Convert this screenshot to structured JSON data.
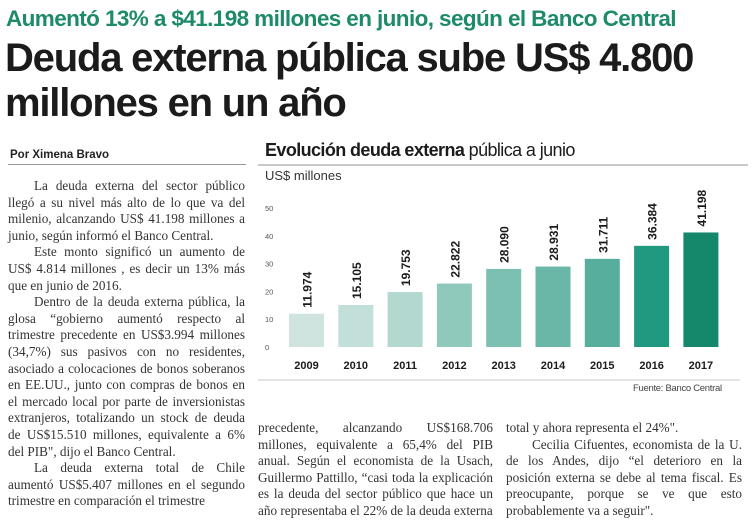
{
  "article": {
    "kicker": "Aumentó 13% a $41.198 millones en junio, según el Banco Central",
    "headline": "Deuda externa pública sube US$ 4.800 millones en un año",
    "byline": "Por Ximena Bravo",
    "column1": [
      "La deuda externa del sector público llegó a su nivel más alto de lo que va del milenio, alcanzando US$ 41.198 millones a junio, según informó el Banco Central.",
      "Este monto significó un aumento de US$ 4.814 millones , es decir un 13% más que en junio de 2016.",
      "Dentro de la deuda externa pública, la glosa “gobierno aumentó respecto al trimestre precedente en US$3.994 millones (34,7%) sus pasivos con no residentes, asociado a colocaciones de bonos soberanos en EE.UU., junto con compras de bonos en el mercado local por parte de inversionistas extranjeros, totalizando un stock de deuda de US$15.510 millones, equivalente a 6% del PIB\", dijo el Banco Central.",
      "La deuda externa total de Chile aumentó US$5.407 millones en el segundo trimestre en comparación el trimestre"
    ],
    "column2": [
      "precedente, alcanzando US$168.706 millones, equivalente a 65,4% del PIB anual. Según el economista de la Usach, Guillermo Pattillo, “casi toda la explicación es la deuda del sector público que hace un año representaba el 22% de la deuda externa"
    ],
    "column3": [
      "total y ahora representa el 24%\".",
      "Cecilia Cifuentes, economista de la U. de los Andes, dijo “el deterioro en la posición externa se debe al tema fiscal. Es preocupante, porque se ve que esto probablemente va a seguir\"."
    ]
  },
  "colors": {
    "kicker": "#1d8a68",
    "bars": [
      "#cfe3df",
      "#c3dfd9",
      "#b3d8d0",
      "#8fc9bc",
      "#7cc0b2",
      "#6ab7a7",
      "#57ae9c",
      "#1f9a80",
      "#15876b"
    ]
  },
  "chart_data": {
    "type": "bar",
    "title_bold": "Evolución deuda externa",
    "title_regular": "pública a junio",
    "ylabel": "US$ millones",
    "xlabel": "",
    "categories": [
      "2009",
      "2010",
      "2011",
      "2012",
      "2013",
      "2014",
      "2015",
      "2016",
      "2017"
    ],
    "values": [
      11.974,
      15.105,
      19.753,
      22.822,
      28.09,
      28.931,
      31.711,
      36.384,
      41.198
    ],
    "value_labels": [
      "11.974",
      "15.105",
      "19.753",
      "22.822",
      "28.090",
      "28.931",
      "31.711",
      "36.384",
      "41.198"
    ],
    "yticks": [
      "0",
      "10",
      "20",
      "30",
      "40",
      "50"
    ],
    "ylim": [
      0,
      50
    ],
    "grid": false,
    "legend": "none",
    "source": "Fuente: Banco Central"
  }
}
